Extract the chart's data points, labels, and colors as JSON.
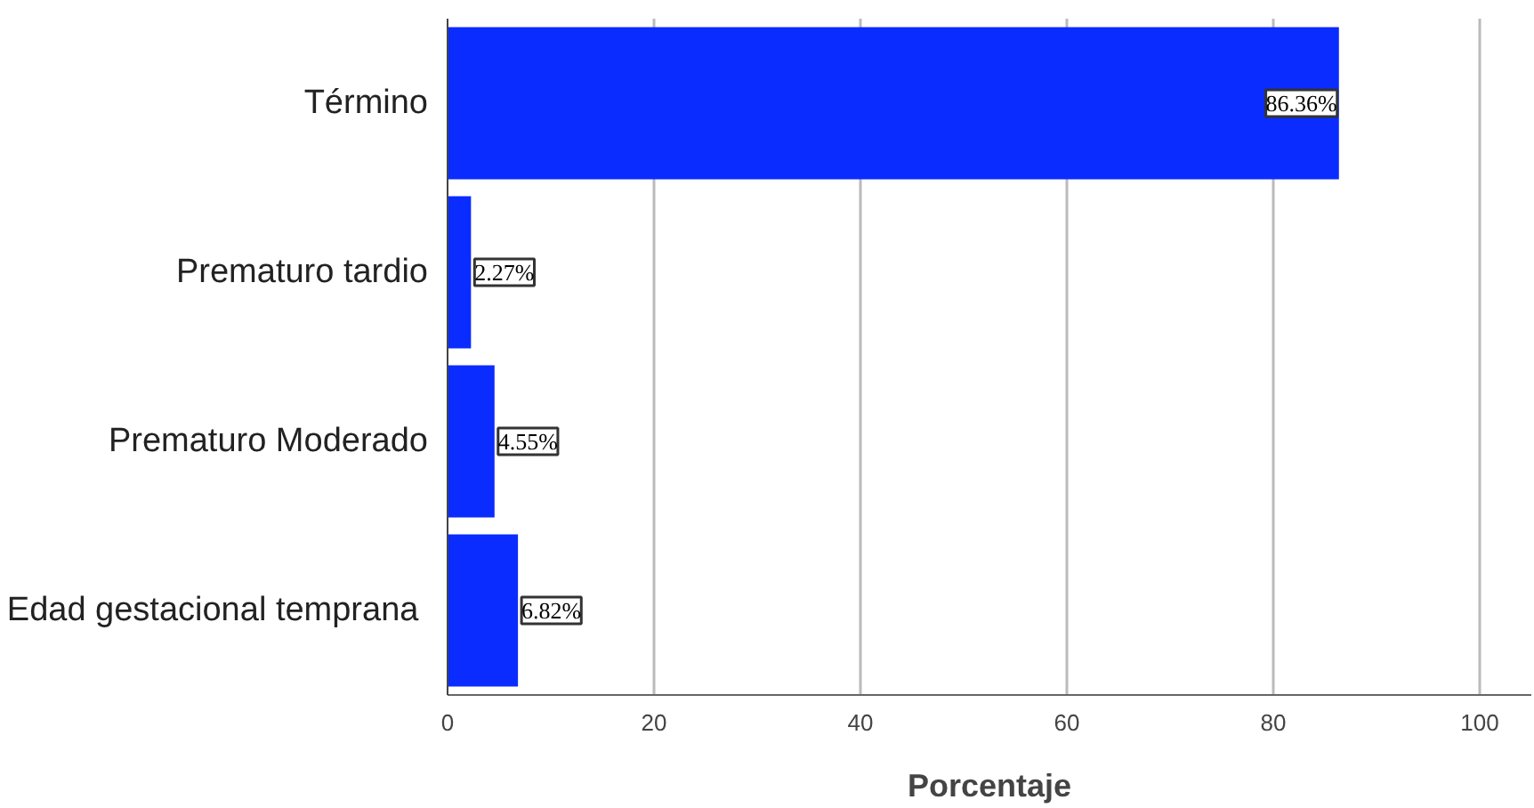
{
  "chart_data": {
    "type": "bar",
    "orientation": "horizontal",
    "xlabel": "Porcentaje",
    "categories": [
      "Término",
      "Prematuro tardio",
      "Prematuro Moderado",
      "Edad gestacional  temprana"
    ],
    "values": [
      86.36,
      2.27,
      4.55,
      6.82
    ],
    "color": "#0a2cff",
    "value_labels": [
      "86.36%",
      "2.27%",
      "4.55%",
      "6.82%"
    ],
    "xlim": [
      0,
      105
    ],
    "xticks": [
      0,
      20,
      40,
      60,
      80,
      100
    ],
    "grid": "x"
  }
}
